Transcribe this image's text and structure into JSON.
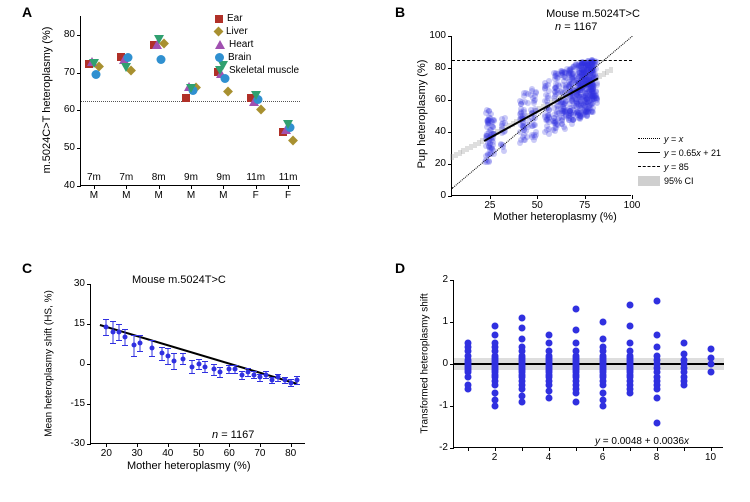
{
  "colors": {
    "ear": "#b03028",
    "liver": "#a89030",
    "heart": "#a050b0",
    "brain": "#3090d0",
    "muscle": "#30a070",
    "blue": "#3030e0",
    "blue_alpha": "rgba(48,48,224,0.25)",
    "ci_gray": "rgba(160,160,160,0.4)"
  },
  "panelA": {
    "label": "A",
    "y_title": "m.5024C>T heteroplasmy (%)",
    "y_ticks": [
      40,
      50,
      60,
      70,
      80
    ],
    "ylim": [
      40,
      85
    ],
    "x_groups": [
      {
        "age": "7m",
        "sex": "M"
      },
      {
        "age": "7m",
        "sex": "M"
      },
      {
        "age": "8m",
        "sex": "M"
      },
      {
        "age": "9m",
        "sex": "M"
      },
      {
        "age": "9m",
        "sex": "M"
      },
      {
        "age": "11m",
        "sex": "F"
      },
      {
        "age": "11m",
        "sex": "F"
      }
    ],
    "legend": [
      {
        "name": "Ear",
        "shape": "sq",
        "colorKey": "ear"
      },
      {
        "name": "Liver",
        "shape": "di",
        "colorKey": "liver"
      },
      {
        "name": "Heart",
        "shape": "tr-up",
        "colorKey": "heart"
      },
      {
        "name": "Brain",
        "shape": "ci",
        "colorKey": "brain"
      },
      {
        "name": "Skeletal muscle",
        "shape": "tr-dn",
        "colorKey": "muscle"
      }
    ],
    "data": [
      {
        "g": 0,
        "tissue": "ear",
        "y": 72
      },
      {
        "g": 0,
        "tissue": "liver",
        "y": 71.5
      },
      {
        "g": 0,
        "tissue": "heart",
        "y": 72.5
      },
      {
        "g": 0,
        "tissue": "brain",
        "y": 69
      },
      {
        "g": 0,
        "tissue": "muscle",
        "y": 72
      },
      {
        "g": 1,
        "tissue": "ear",
        "y": 74
      },
      {
        "g": 1,
        "tissue": "liver",
        "y": 70.5
      },
      {
        "g": 1,
        "tissue": "heart",
        "y": 73
      },
      {
        "g": 1,
        "tissue": "brain",
        "y": 73.5
      },
      {
        "g": 1,
        "tissue": "muscle",
        "y": 71
      },
      {
        "g": 2,
        "tissue": "ear",
        "y": 77
      },
      {
        "g": 2,
        "tissue": "liver",
        "y": 77.5
      },
      {
        "g": 2,
        "tissue": "heart",
        "y": 77
      },
      {
        "g": 2,
        "tissue": "brain",
        "y": 73
      },
      {
        "g": 2,
        "tissue": "muscle",
        "y": 78.5
      },
      {
        "g": 3,
        "tissue": "ear",
        "y": 63
      },
      {
        "g": 3,
        "tissue": "liver",
        "y": 66
      },
      {
        "g": 3,
        "tissue": "heart",
        "y": 66
      },
      {
        "g": 3,
        "tissue": "brain",
        "y": 65
      },
      {
        "g": 3,
        "tissue": "muscle",
        "y": 65.5
      },
      {
        "g": 4,
        "tissue": "ear",
        "y": 70
      },
      {
        "g": 4,
        "tissue": "liver",
        "y": 65
      },
      {
        "g": 4,
        "tissue": "heart",
        "y": 69.5
      },
      {
        "g": 4,
        "tissue": "brain",
        "y": 68
      },
      {
        "g": 4,
        "tissue": "muscle",
        "y": 71.5
      },
      {
        "g": 5,
        "tissue": "ear",
        "y": 63
      },
      {
        "g": 5,
        "tissue": "liver",
        "y": 60
      },
      {
        "g": 5,
        "tissue": "heart",
        "y": 62
      },
      {
        "g": 5,
        "tissue": "brain",
        "y": 62.5
      },
      {
        "g": 5,
        "tissue": "muscle",
        "y": 63.5
      },
      {
        "g": 6,
        "tissue": "ear",
        "y": 54
      },
      {
        "g": 6,
        "tissue": "liver",
        "y": 52
      },
      {
        "g": 6,
        "tissue": "heart",
        "y": 54.5
      },
      {
        "g": 6,
        "tissue": "brain",
        "y": 55
      },
      {
        "g": 6,
        "tissue": "muscle",
        "y": 56
      }
    ]
  },
  "panelB": {
    "label": "B",
    "title": "Mouse m.5024T>C",
    "n_label": "n",
    "n_value": "= 1167",
    "x_title": "Mother heteroplasmy (%)",
    "y_title": "Pup heteroplasmy (%)",
    "x_ticks": [
      25,
      50,
      75,
      100
    ],
    "y_ticks": [
      0,
      20,
      40,
      60,
      80,
      100
    ],
    "xlim": [
      5,
      100
    ],
    "ylim": [
      0,
      100
    ],
    "legend": [
      {
        "style": "dotted",
        "text": "y = x"
      },
      {
        "style": "solid",
        "text": "y = 0.65x + 21"
      },
      {
        "style": "dashdot",
        "text": "y = 85"
      },
      {
        "style": "fill",
        "text": "95% CI"
      }
    ],
    "reg_slope": 0.65,
    "reg_intercept": 21,
    "y_line": 85,
    "clusters": [
      {
        "x": 24,
        "ylo": 20,
        "yhi": 55,
        "n": 40
      },
      {
        "x": 26,
        "ylo": 25,
        "yhi": 50,
        "n": 30
      },
      {
        "x": 32,
        "ylo": 25,
        "yhi": 50,
        "n": 15
      },
      {
        "x": 42,
        "ylo": 32,
        "yhi": 60,
        "n": 25
      },
      {
        "x": 44,
        "ylo": 35,
        "yhi": 65,
        "n": 20
      },
      {
        "x": 48,
        "ylo": 35,
        "yhi": 68,
        "n": 30
      },
      {
        "x": 55,
        "ylo": 38,
        "yhi": 72,
        "n": 35
      },
      {
        "x": 60,
        "ylo": 40,
        "yhi": 78,
        "n": 50
      },
      {
        "x": 64,
        "ylo": 42,
        "yhi": 80,
        "n": 60
      },
      {
        "x": 68,
        "ylo": 45,
        "yhi": 82,
        "n": 80
      },
      {
        "x": 72,
        "ylo": 48,
        "yhi": 84,
        "n": 100
      },
      {
        "x": 75,
        "ylo": 50,
        "yhi": 84,
        "n": 110
      },
      {
        "x": 78,
        "ylo": 52,
        "yhi": 85,
        "n": 100
      },
      {
        "x": 80,
        "ylo": 55,
        "yhi": 85,
        "n": 70
      }
    ]
  },
  "panelC": {
    "label": "C",
    "title": "Mouse m.5024T>C",
    "n_label": "n",
    "n_value": "= 1167",
    "x_title": "Mother heteroplasmy (%)",
    "y_title": "Mean heteroplasmy shift (HS, %)",
    "x_ticks": [
      20,
      30,
      40,
      50,
      60,
      70,
      80
    ],
    "y_ticks": [
      -30,
      -15,
      0,
      15,
      30
    ],
    "xlim": [
      15,
      85
    ],
    "ylim": [
      -30,
      30
    ],
    "reg_x0": 18,
    "reg_y0": 15,
    "reg_x1": 82,
    "reg_y1": -7,
    "points": [
      {
        "x": 20,
        "y": 14,
        "e": 3
      },
      {
        "x": 22,
        "y": 12,
        "e": 4
      },
      {
        "x": 24,
        "y": 12,
        "e": 3
      },
      {
        "x": 26,
        "y": 10,
        "e": 3
      },
      {
        "x": 29,
        "y": 7,
        "e": 4
      },
      {
        "x": 31,
        "y": 8,
        "e": 3
      },
      {
        "x": 35,
        "y": 6,
        "e": 3
      },
      {
        "x": 38,
        "y": 4,
        "e": 2.5
      },
      {
        "x": 40,
        "y": 3,
        "e": 3
      },
      {
        "x": 42,
        "y": 1,
        "e": 3
      },
      {
        "x": 45,
        "y": 2,
        "e": 2
      },
      {
        "x": 48,
        "y": -1,
        "e": 2.5
      },
      {
        "x": 50,
        "y": 0,
        "e": 2
      },
      {
        "x": 52,
        "y": -1,
        "e": 2
      },
      {
        "x": 55,
        "y": -2,
        "e": 2
      },
      {
        "x": 57,
        "y": -3,
        "e": 2
      },
      {
        "x": 60,
        "y": -2,
        "e": 1.5
      },
      {
        "x": 62,
        "y": -2,
        "e": 1.5
      },
      {
        "x": 64,
        "y": -4,
        "e": 1.5
      },
      {
        "x": 66,
        "y": -3,
        "e": 1.5
      },
      {
        "x": 68,
        "y": -4,
        "e": 1.2
      },
      {
        "x": 70,
        "y": -5,
        "e": 1.2
      },
      {
        "x": 72,
        "y": -4,
        "e": 1.2
      },
      {
        "x": 74,
        "y": -6,
        "e": 1.2
      },
      {
        "x": 76,
        "y": -5,
        "e": 1.2
      },
      {
        "x": 78,
        "y": -6,
        "e": 1.2
      },
      {
        "x": 80,
        "y": -7,
        "e": 1.2
      },
      {
        "x": 82,
        "y": -6,
        "e": 1.5
      }
    ]
  },
  "panelD": {
    "label": "D",
    "y_title": "Transformed heteroplasmy shift",
    "x_ticks": [
      1,
      2,
      3,
      4,
      5,
      6,
      7,
      8,
      9,
      10
    ],
    "x_tick_labels": [
      " ",
      "2",
      " ",
      "4",
      " ",
      "6",
      " ",
      "8",
      " ",
      "10"
    ],
    "y_ticks": [
      -2,
      -1,
      0,
      1,
      2
    ],
    "xlim": [
      0.5,
      10.5
    ],
    "ylim": [
      -2,
      2
    ],
    "equation": "y = 0.0048 + 0.0036x",
    "reg_y0": 0.008,
    "reg_y1": 0.041,
    "ci_half": 0.15,
    "columns": [
      {
        "x": 1,
        "pts": [
          -0.5,
          -0.3,
          -0.2,
          -0.15,
          -0.1,
          -0.05,
          0,
          0.05,
          0.1,
          0.2,
          0.3,
          0.4,
          -0.6,
          0.5
        ]
      },
      {
        "x": 2,
        "pts": [
          -1.0,
          -0.7,
          -0.5,
          -0.4,
          -0.3,
          -0.25,
          -0.2,
          -0.15,
          -0.1,
          -0.05,
          0,
          0.05,
          0.1,
          0.15,
          0.2,
          0.3,
          0.4,
          0.5,
          0.7,
          0.9,
          -0.85
        ]
      },
      {
        "x": 3,
        "pts": [
          -0.9,
          -0.6,
          -0.5,
          -0.4,
          -0.3,
          -0.25,
          -0.2,
          -0.15,
          -0.1,
          -0.05,
          0,
          0.05,
          0.1,
          0.15,
          0.2,
          0.3,
          0.4,
          0.6,
          0.85,
          1.1,
          -0.75
        ]
      },
      {
        "x": 4,
        "pts": [
          -0.8,
          -0.5,
          -0.4,
          -0.3,
          -0.25,
          -0.2,
          -0.15,
          -0.1,
          -0.05,
          0,
          0.05,
          0.1,
          0.15,
          0.2,
          0.3,
          0.5,
          0.7,
          -0.65
        ]
      },
      {
        "x": 5,
        "pts": [
          -0.9,
          -0.6,
          -0.5,
          -0.4,
          -0.3,
          -0.25,
          -0.2,
          -0.15,
          -0.1,
          -0.05,
          0,
          0.05,
          0.1,
          0.15,
          0.2,
          0.3,
          0.5,
          0.8,
          1.3,
          -0.7
        ]
      },
      {
        "x": 6,
        "pts": [
          -1.0,
          -0.7,
          -0.5,
          -0.4,
          -0.3,
          -0.25,
          -0.2,
          -0.15,
          -0.1,
          -0.05,
          0,
          0.05,
          0.1,
          0.15,
          0.2,
          0.3,
          0.4,
          0.6,
          1.0,
          -0.85
        ]
      },
      {
        "x": 7,
        "pts": [
          -0.7,
          -0.5,
          -0.4,
          -0.3,
          -0.25,
          -0.2,
          -0.15,
          -0.1,
          -0.05,
          0,
          0.05,
          0.1,
          0.15,
          0.2,
          0.3,
          0.5,
          0.9,
          1.4,
          -0.6
        ]
      },
      {
        "x": 8,
        "pts": [
          -1.4,
          -0.8,
          -0.5,
          -0.4,
          -0.3,
          -0.2,
          -0.1,
          0,
          0.1,
          0.2,
          0.4,
          0.7,
          1.5,
          -0.6
        ]
      },
      {
        "x": 9,
        "pts": [
          -0.5,
          -0.3,
          -0.2,
          -0.1,
          0,
          0.1,
          0.25,
          0.5,
          -0.4
        ]
      },
      {
        "x": 10,
        "pts": [
          -0.2,
          0,
          0.15,
          0.35
        ]
      }
    ]
  }
}
